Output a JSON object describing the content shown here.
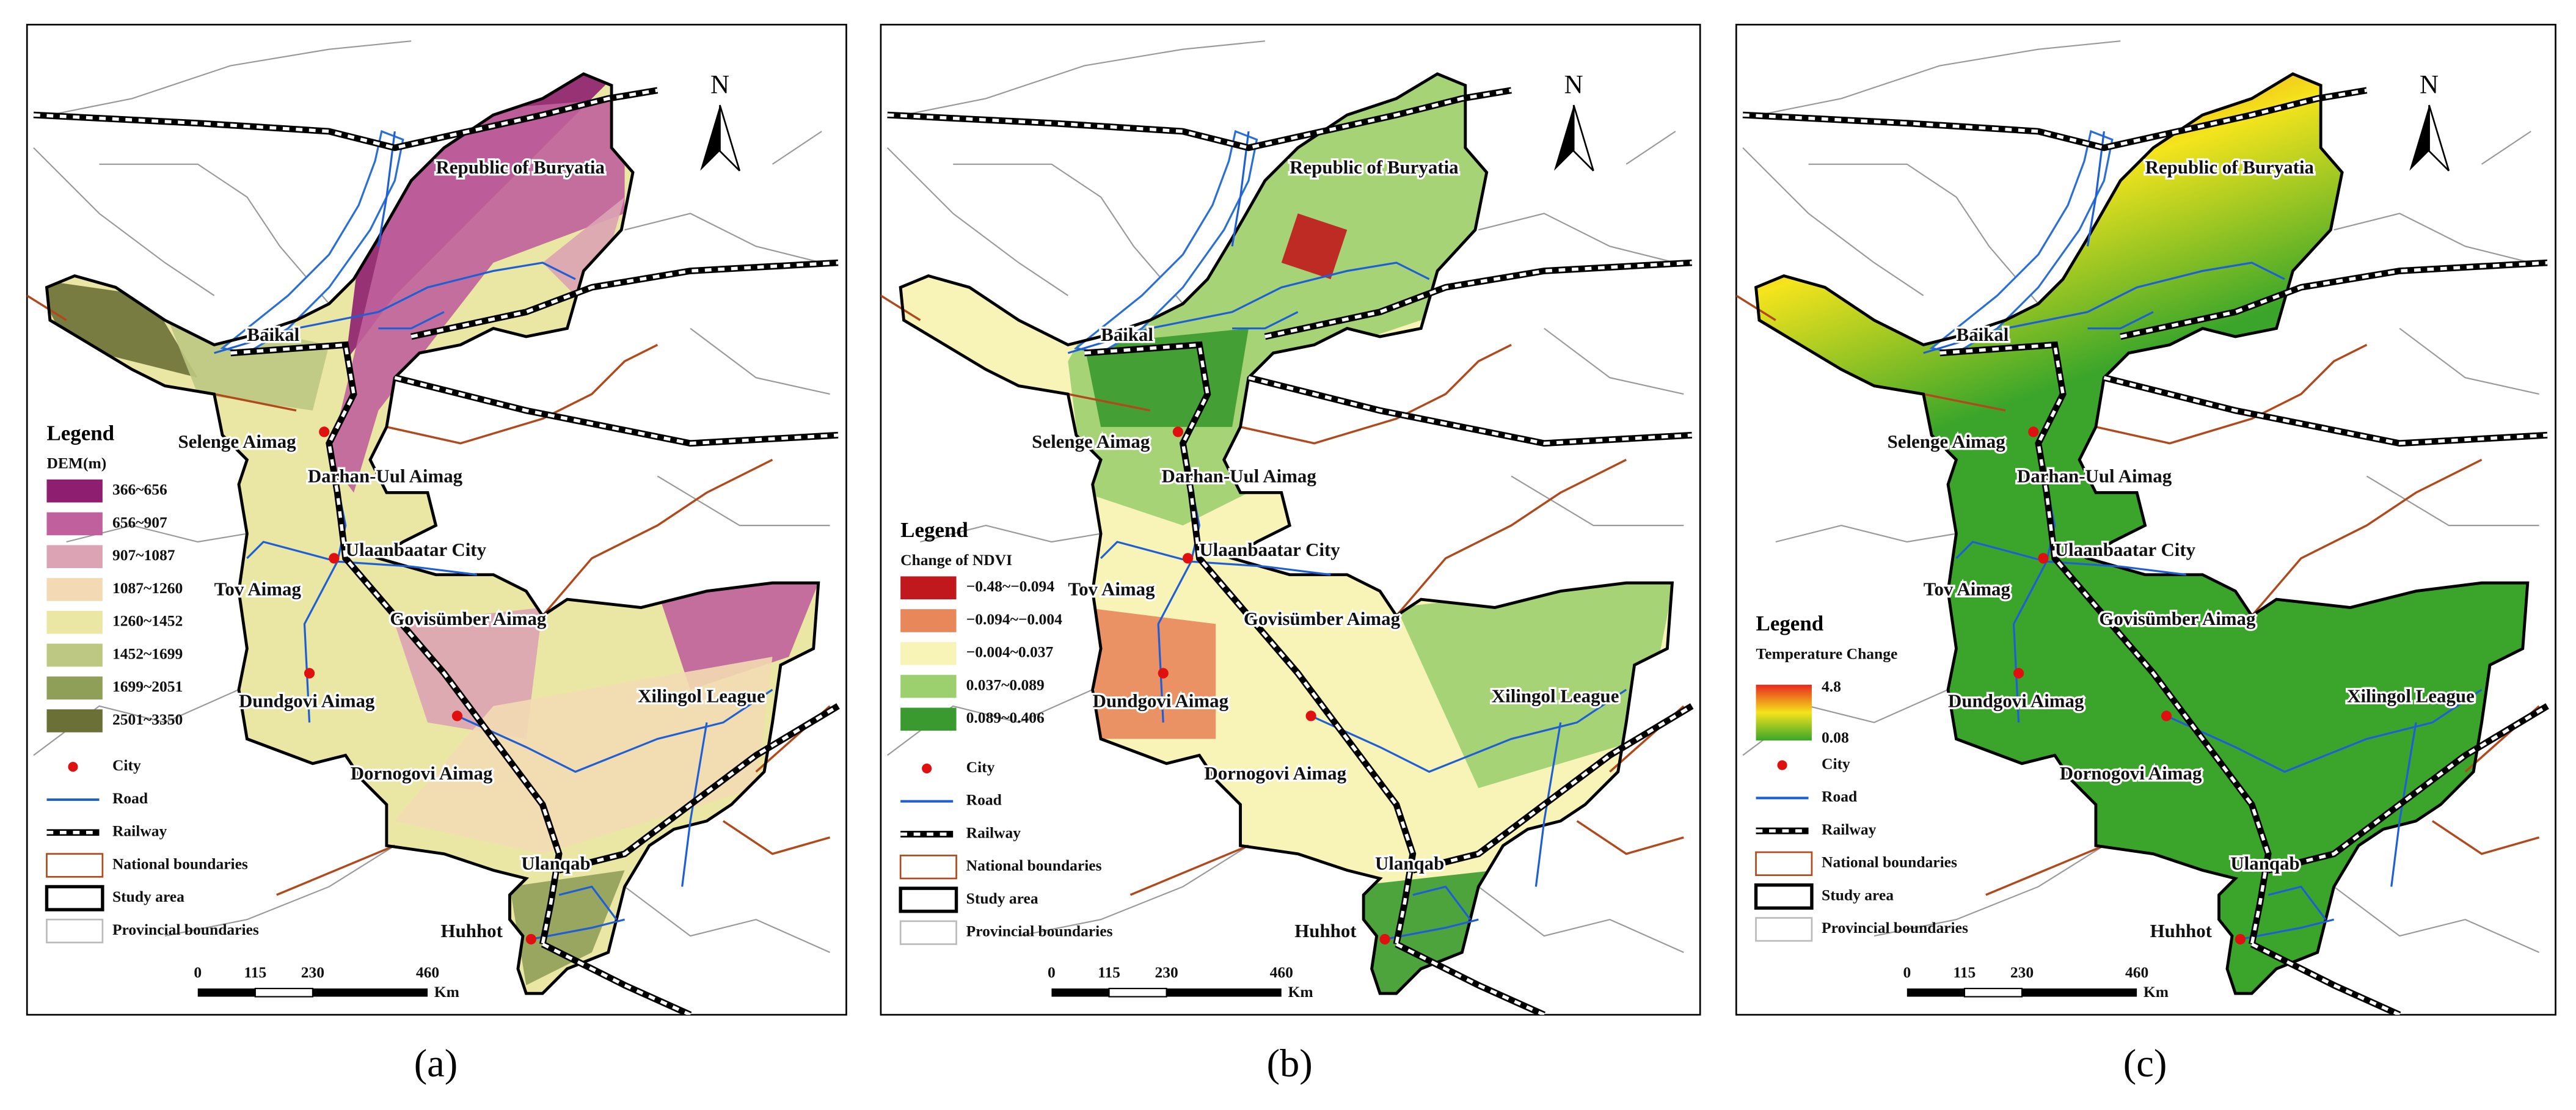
{
  "panels": [
    {
      "caption": "(a)",
      "north": "N",
      "places": [
        "Republic of Buryatia",
        "Baikal",
        "Selenge Aimag",
        "Darhan-Uul Aimag",
        "Ulaanbaatar City",
        "Tov Aimag",
        "Govisümber Aimag",
        "Dundgovi Aimag",
        "Dornogovi Aimag",
        "Xilingol League",
        "Ulanqab",
        "Huhhot"
      ],
      "legend": {
        "title": "Legend",
        "subtitle": "DEM(m)",
        "classes": [
          {
            "label": "366~656",
            "color": "#8e1e6f"
          },
          {
            "label": "656~907",
            "color": "#c0609c"
          },
          {
            "label": "907~1087",
            "color": "#dca3b4"
          },
          {
            "label": "1087~1260",
            "color": "#f3dab4"
          },
          {
            "label": "1260~1452",
            "color": "#eae6a4"
          },
          {
            "label": "1452~1699",
            "color": "#bdc882"
          },
          {
            "label": "1699~2051",
            "color": "#909f58"
          },
          {
            "label": "2501~3350",
            "color": "#6b7036"
          }
        ],
        "items": [
          "City",
          "Road",
          "Railway",
          "National boundaries",
          "Study area",
          "Provincial boundaries"
        ]
      },
      "scale": {
        "ticks": [
          "0",
          "115",
          "230",
          "460"
        ],
        "unit": "Km"
      }
    },
    {
      "caption": "(b)",
      "north": "N",
      "places": [
        "Republic of Buryatia",
        "Baikal",
        "Selenge Aimag",
        "Darhan-Uul Aimag",
        "Ulaanbaatar City",
        "Tov Aimag",
        "Govisümber Aimag",
        "Dundgovi Aimag",
        "Dornogovi Aimag",
        "Xilingol League",
        "Ulanqab",
        "Huhhot"
      ],
      "legend": {
        "title": "Legend",
        "subtitle": "Change of NDVI",
        "classes": [
          {
            "label": "−0.48~−0.094",
            "color": "#c0181c"
          },
          {
            "label": "−0.094~−0.004",
            "color": "#e8875a"
          },
          {
            "label": "−0.004~0.037",
            "color": "#f8f4b8"
          },
          {
            "label": "0.037~0.089",
            "color": "#9ccf6e"
          },
          {
            "label": "0.089~0.406",
            "color": "#3a9a2f"
          }
        ],
        "items": [
          "City",
          "Road",
          "Railway",
          "National boundaries",
          "Study area",
          "Provincial boundaries"
        ]
      },
      "scale": {
        "ticks": [
          "0",
          "115",
          "230",
          "460"
        ],
        "unit": "Km"
      }
    },
    {
      "caption": "(c)",
      "north": "N",
      "places": [
        "Republic of Buryatia",
        "Baikal",
        "Selenge Aimag",
        "Darhan-Uul Aimag",
        "Ulaanbaatar City",
        "Tov Aimag",
        "Govisümber Aimag",
        "Dundgovi Aimag",
        "Dornogovi Aimag",
        "Xilingol League",
        "Ulanqab",
        "Huhhot"
      ],
      "legend": {
        "title": "Legend",
        "subtitle": "Temperature Change",
        "gradient": {
          "max": "4.8",
          "min": "0.08",
          "colors": [
            "#e8281e",
            "#f4e41c",
            "#3aa52a"
          ]
        },
        "items": [
          "City",
          "Road",
          "Railway",
          "National boundaries",
          "Study area",
          "Provincial boundaries"
        ]
      },
      "scale": {
        "ticks": [
          "0",
          "115",
          "230",
          "460"
        ],
        "unit": "Km"
      }
    }
  ]
}
